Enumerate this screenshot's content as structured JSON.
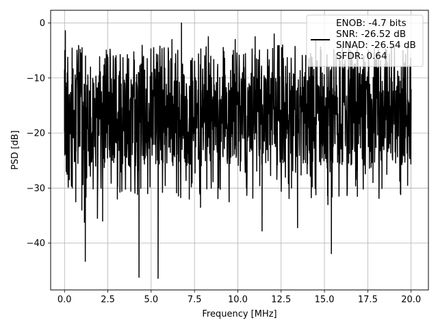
{
  "chart_data": {
    "type": "line",
    "xlabel": "Frequency [MHz]",
    "ylabel": "PSD [dB]",
    "xlim": [
      -0.8,
      21.0
    ],
    "ylim": [
      -48.5,
      2.3
    ],
    "xticks": [
      0.0,
      2.5,
      5.0,
      7.5,
      10.0,
      12.5,
      15.0,
      17.5,
      20.0
    ],
    "xtick_labels": [
      "0.0",
      "2.5",
      "5.0",
      "7.5",
      "10.0",
      "12.5",
      "15.0",
      "17.5",
      "20.0"
    ],
    "yticks": [
      0,
      -10,
      -20,
      -30,
      -40
    ],
    "ytick_labels": [
      "0",
      "−10",
      "−20",
      "−30",
      "−40"
    ],
    "grid": true,
    "legend_position": "top-right",
    "series": [
      {
        "name": "ENOB: -4.7 bits\nSNR: -26.52 dB\nSINAD: -26.54 dB\nSFDR: 0.64",
        "color": "#000000",
        "x_range": [
          0.0,
          20.0
        ],
        "typical_range": [
          -26,
          -9
        ],
        "points": [
          [
            0.0,
            -8.5
          ],
          [
            0.02,
            -5.0
          ],
          [
            0.05,
            -1.4
          ],
          [
            0.08,
            -12.0
          ],
          [
            0.1,
            -27.0
          ],
          [
            0.2,
            -10.5
          ],
          [
            0.28,
            -28.5
          ],
          [
            0.45,
            -30.0
          ],
          [
            0.65,
            -32.5
          ],
          [
            0.85,
            -9.0
          ],
          [
            1.0,
            -34.0
          ],
          [
            1.15,
            -36.2
          ],
          [
            1.2,
            -43.3
          ],
          [
            1.5,
            -8.0
          ],
          [
            1.9,
            -35.5
          ],
          [
            2.2,
            -36.0
          ],
          [
            3.05,
            -32.0
          ],
          [
            3.7,
            -6.5
          ],
          [
            4.3,
            -46.2
          ],
          [
            4.8,
            -31.0
          ],
          [
            5.4,
            -46.4
          ],
          [
            6.2,
            -3.0
          ],
          [
            6.75,
            0.0
          ],
          [
            7.2,
            -32.0
          ],
          [
            7.85,
            -33.5
          ],
          [
            8.3,
            -2.5
          ],
          [
            8.9,
            -30.0
          ],
          [
            9.5,
            -32.5
          ],
          [
            9.85,
            -3.0
          ],
          [
            10.5,
            -30.0
          ],
          [
            11.0,
            -2.5
          ],
          [
            11.4,
            -37.8
          ],
          [
            12.1,
            -2.0
          ],
          [
            13.1,
            -30.0
          ],
          [
            13.45,
            -37.2
          ],
          [
            14.5,
            -3.0
          ],
          [
            15.2,
            -33.0
          ],
          [
            15.4,
            -41.9
          ],
          [
            16.4,
            -3.5
          ],
          [
            16.9,
            -31.5
          ],
          [
            17.8,
            -29.0
          ],
          [
            18.6,
            -27.5
          ],
          [
            19.8,
            -29.5
          ],
          [
            20.0,
            -12.0
          ]
        ]
      }
    ],
    "legend_lines": [
      "ENOB: -4.7 bits",
      "SNR: -26.52 dB",
      "SINAD: -26.54 dB",
      "SFDR: 0.64"
    ]
  }
}
